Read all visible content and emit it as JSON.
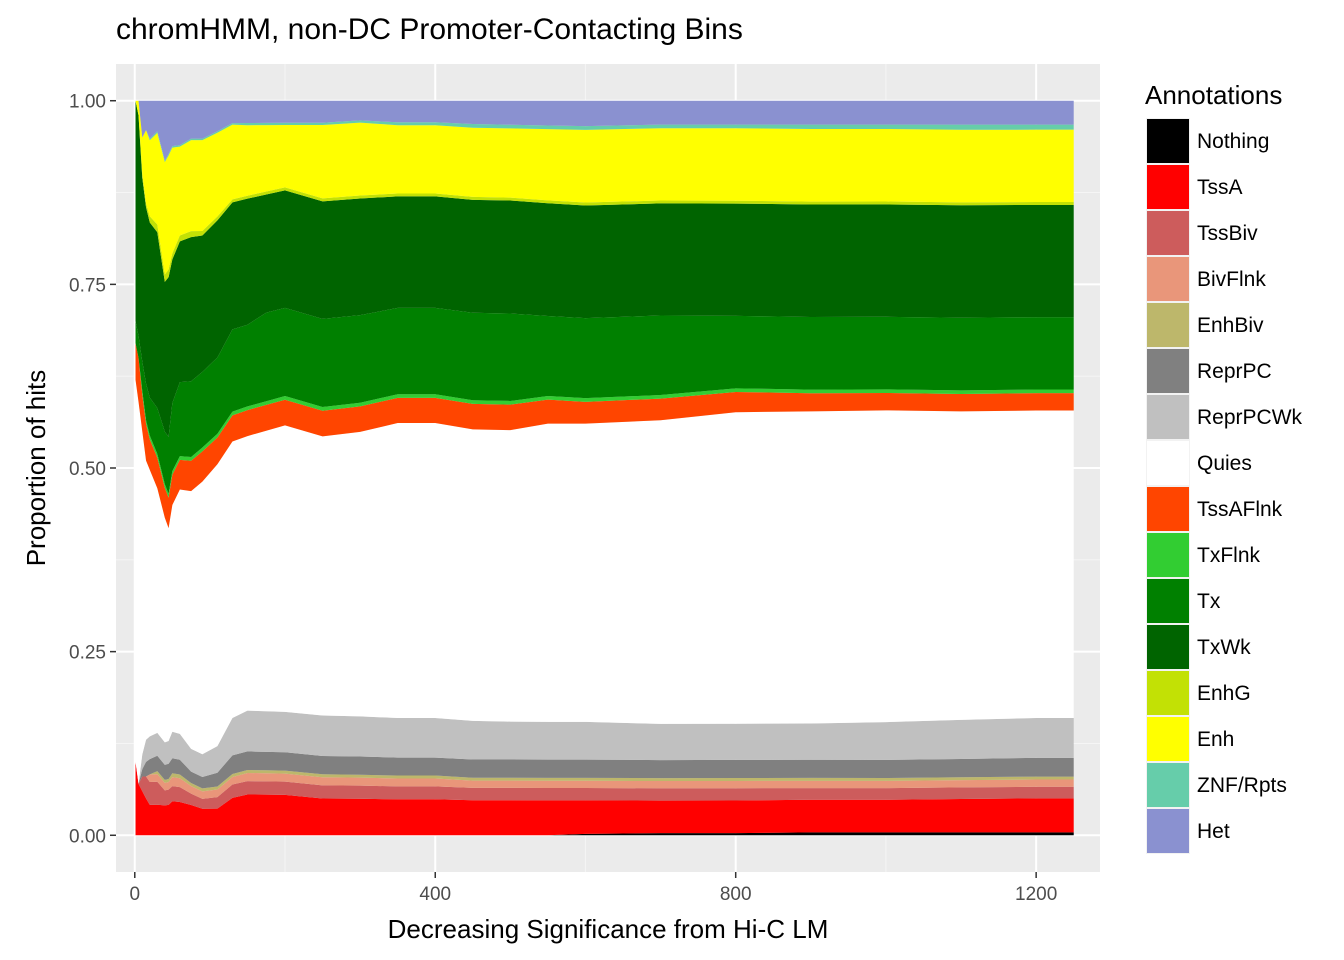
{
  "chart_data": {
    "type": "area",
    "stacked": true,
    "normalized": true,
    "title": "chromHMM, non-DC Promoter-Contacting Bins",
    "xlabel": "Decreasing Significance from Hi-C LM",
    "ylabel": "Proportion of hits",
    "xlim": [
      -25,
      1285
    ],
    "ylim": [
      -0.05,
      1.05
    ],
    "x_ticks": [
      0,
      400,
      800,
      1200
    ],
    "x_tick_labels": [
      "0",
      "400",
      "800",
      "1200"
    ],
    "y_ticks": [
      0,
      0.25,
      0.5,
      0.75,
      1.0
    ],
    "y_tick_labels": [
      "0.00",
      "0.25",
      "0.50",
      "0.75",
      "1.00"
    ],
    "grid": true,
    "legend_title": "Annotations",
    "legend_position": "right",
    "x": [
      1,
      5,
      10,
      15,
      20,
      30,
      40,
      45,
      50,
      60,
      75,
      90,
      110,
      130,
      150,
      175,
      200,
      250,
      300,
      350,
      400,
      450,
      500,
      550,
      600,
      700,
      800,
      900,
      1000,
      1100,
      1200,
      1250
    ],
    "series": [
      {
        "name": "Nothing",
        "color": "#000000",
        "values": [
          0,
          0,
          0,
          0,
          0,
          0,
          0,
          0,
          0,
          0,
          0,
          0,
          0,
          0,
          0,
          0,
          0,
          0,
          0,
          0,
          0,
          0,
          0,
          0,
          0.002,
          0.003,
          0.003,
          0.004,
          0.004,
          0.004,
          0.004,
          0.004
        ]
      },
      {
        "name": "TssA",
        "color": "#ff0000",
        "values": [
          0.1,
          0.07,
          0.06,
          0.05,
          0.04,
          0.04,
          0.04,
          0.04,
          0.045,
          0.045,
          0.04,
          0.035,
          0.035,
          0.05,
          0.055,
          0.055,
          0.055,
          0.05,
          0.05,
          0.05,
          0.05,
          0.048,
          0.048,
          0.048,
          0.046,
          0.045,
          0.045,
          0.045,
          0.045,
          0.046,
          0.047,
          0.047
        ]
      },
      {
        "name": "TssBiv",
        "color": "#cd5c5c",
        "values": [
          0,
          0,
          0.02,
          0.03,
          0.03,
          0.03,
          0.02,
          0.02,
          0.02,
          0.02,
          0.015,
          0.013,
          0.015,
          0.018,
          0.018,
          0.018,
          0.018,
          0.018,
          0.018,
          0.018,
          0.018,
          0.017,
          0.017,
          0.017,
          0.017,
          0.017,
          0.017,
          0.016,
          0.016,
          0.016,
          0.016,
          0.016
        ]
      },
      {
        "name": "BivFlnk",
        "color": "#e9967a",
        "values": [
          0,
          0,
          0,
          0,
          0.01,
          0.01,
          0.01,
          0.01,
          0.012,
          0.012,
          0.01,
          0.01,
          0.01,
          0.01,
          0.011,
          0.011,
          0.011,
          0.011,
          0.011,
          0.011,
          0.011,
          0.01,
          0.01,
          0.01,
          0.01,
          0.01,
          0.01,
          0.01,
          0.01,
          0.01,
          0.01,
          0.01
        ]
      },
      {
        "name": "EnhBiv",
        "color": "#bdb76b",
        "values": [
          0,
          0,
          0,
          0,
          0,
          0.004,
          0.004,
          0.004,
          0.005,
          0.005,
          0.004,
          0.004,
          0.004,
          0.004,
          0.004,
          0.004,
          0.004,
          0.004,
          0.004,
          0.004,
          0.004,
          0.004,
          0.004,
          0.004,
          0.004,
          0.004,
          0.004,
          0.004,
          0.004,
          0.004,
          0.004,
          0.004
        ]
      },
      {
        "name": "ReprPC",
        "color": "#808080",
        "values": [
          0,
          0,
          0.01,
          0.02,
          0.02,
          0.02,
          0.02,
          0.02,
          0.02,
          0.02,
          0.015,
          0.015,
          0.018,
          0.025,
          0.025,
          0.025,
          0.025,
          0.025,
          0.025,
          0.025,
          0.025,
          0.025,
          0.025,
          0.025,
          0.025,
          0.025,
          0.025,
          0.025,
          0.025,
          0.025,
          0.026,
          0.026
        ]
      },
      {
        "name": "ReprPCWk",
        "color": "#c0c0c0",
        "values": [
          0,
          0,
          0.02,
          0.03,
          0.03,
          0.03,
          0.03,
          0.03,
          0.035,
          0.035,
          0.03,
          0.03,
          0.035,
          0.05,
          0.055,
          0.055,
          0.055,
          0.055,
          0.055,
          0.055,
          0.055,
          0.053,
          0.052,
          0.052,
          0.052,
          0.05,
          0.05,
          0.05,
          0.052,
          0.054,
          0.055,
          0.055
        ]
      },
      {
        "name": "Quies",
        "color": "#ffffff",
        "values": [
          0.52,
          0.52,
          0.44,
          0.38,
          0.35,
          0.32,
          0.3,
          0.28,
          0.3,
          0.33,
          0.34,
          0.36,
          0.37,
          0.37,
          0.37,
          0.38,
          0.39,
          0.38,
          0.39,
          0.41,
          0.41,
          0.4,
          0.4,
          0.41,
          0.41,
          0.42,
          0.43,
          0.43,
          0.43,
          0.425,
          0.425,
          0.425
        ]
      },
      {
        "name": "TssAFlnk",
        "color": "#ff4500",
        "values": [
          0.05,
          0.06,
          0.05,
          0.05,
          0.04,
          0.04,
          0.04,
          0.04,
          0.04,
          0.04,
          0.04,
          0.04,
          0.035,
          0.035,
          0.035,
          0.035,
          0.035,
          0.035,
          0.035,
          0.035,
          0.035,
          0.035,
          0.035,
          0.033,
          0.03,
          0.03,
          0.028,
          0.025,
          0.024,
          0.024,
          0.024,
          0.024
        ]
      },
      {
        "name": "TxFlnk",
        "color": "#32cd32",
        "values": [
          0,
          0,
          0.005,
          0.005,
          0.005,
          0.005,
          0.005,
          0.005,
          0.005,
          0.005,
          0.005,
          0.005,
          0.005,
          0.005,
          0.005,
          0.005,
          0.005,
          0.005,
          0.005,
          0.005,
          0.005,
          0.005,
          0.005,
          0.005,
          0.005,
          0.005,
          0.005,
          0.005,
          0.005,
          0.005,
          0.005,
          0.005
        ]
      },
      {
        "name": "Tx",
        "color": "#008000",
        "values": [
          0.03,
          0.03,
          0.04,
          0.05,
          0.05,
          0.06,
          0.07,
          0.075,
          0.09,
          0.1,
          0.1,
          0.1,
          0.1,
          0.11,
          0.11,
          0.12,
          0.12,
          0.12,
          0.12,
          0.12,
          0.12,
          0.12,
          0.12,
          0.11,
          0.11,
          0.11,
          0.1,
          0.1,
          0.1,
          0.1,
          0.1,
          0.1
        ]
      },
      {
        "name": "TxWk",
        "color": "#006400",
        "values": [
          0.3,
          0.3,
          0.25,
          0.24,
          0.23,
          0.23,
          0.2,
          0.21,
          0.19,
          0.19,
          0.19,
          0.18,
          0.18,
          0.17,
          0.17,
          0.16,
          0.16,
          0.16,
          0.16,
          0.155,
          0.155,
          0.155,
          0.155,
          0.155,
          0.155,
          0.155,
          0.155,
          0.155,
          0.155,
          0.155,
          0.155,
          0.155
        ]
      },
      {
        "name": "EnhG",
        "color": "#c2e105",
        "values": [
          0,
          0,
          0.005,
          0.005,
          0.008,
          0.01,
          0.01,
          0.01,
          0.008,
          0.008,
          0.008,
          0.006,
          0.005,
          0.004,
          0.004,
          0.004,
          0.004,
          0.004,
          0.004,
          0.004,
          0.004,
          0.004,
          0.004,
          0.004,
          0.004,
          0.004,
          0.004,
          0.004,
          0.004,
          0.004,
          0.004,
          0.004
        ]
      },
      {
        "name": "Enh",
        "color": "#ffff00",
        "values": [
          0,
          0.02,
          0.05,
          0.1,
          0.1,
          0.12,
          0.15,
          0.15,
          0.14,
          0.12,
          0.12,
          0.12,
          0.11,
          0.1,
          0.095,
          0.09,
          0.085,
          0.1,
          0.1,
          0.095,
          0.095,
          0.095,
          0.095,
          0.098,
          0.1,
          0.1,
          0.1,
          0.1,
          0.1,
          0.1,
          0.1,
          0.1
        ]
      },
      {
        "name": "ZNF/Rpts",
        "color": "#66cdaa",
        "values": [
          0,
          0,
          0,
          0,
          0.002,
          0.002,
          0.002,
          0.002,
          0.002,
          0.002,
          0.002,
          0.002,
          0.002,
          0.002,
          0.003,
          0.003,
          0.003,
          0.003,
          0.003,
          0.004,
          0.004,
          0.005,
          0.005,
          0.005,
          0.005,
          0.005,
          0.005,
          0.006,
          0.006,
          0.007,
          0.007,
          0.007
        ]
      },
      {
        "name": "Het",
        "color": "#8a91d0",
        "values": [
          0,
          0,
          0.05,
          0.04,
          0.05,
          0.04,
          0.08,
          0.07,
          0.06,
          0.06,
          0.05,
          0.05,
          0.04,
          0.03,
          0.03,
          0.03,
          0.03,
          0.03,
          0.027,
          0.03,
          0.03,
          0.032,
          0.033,
          0.034,
          0.035,
          0.033,
          0.033,
          0.033,
          0.033,
          0.033,
          0.033,
          0.033
        ]
      }
    ]
  }
}
